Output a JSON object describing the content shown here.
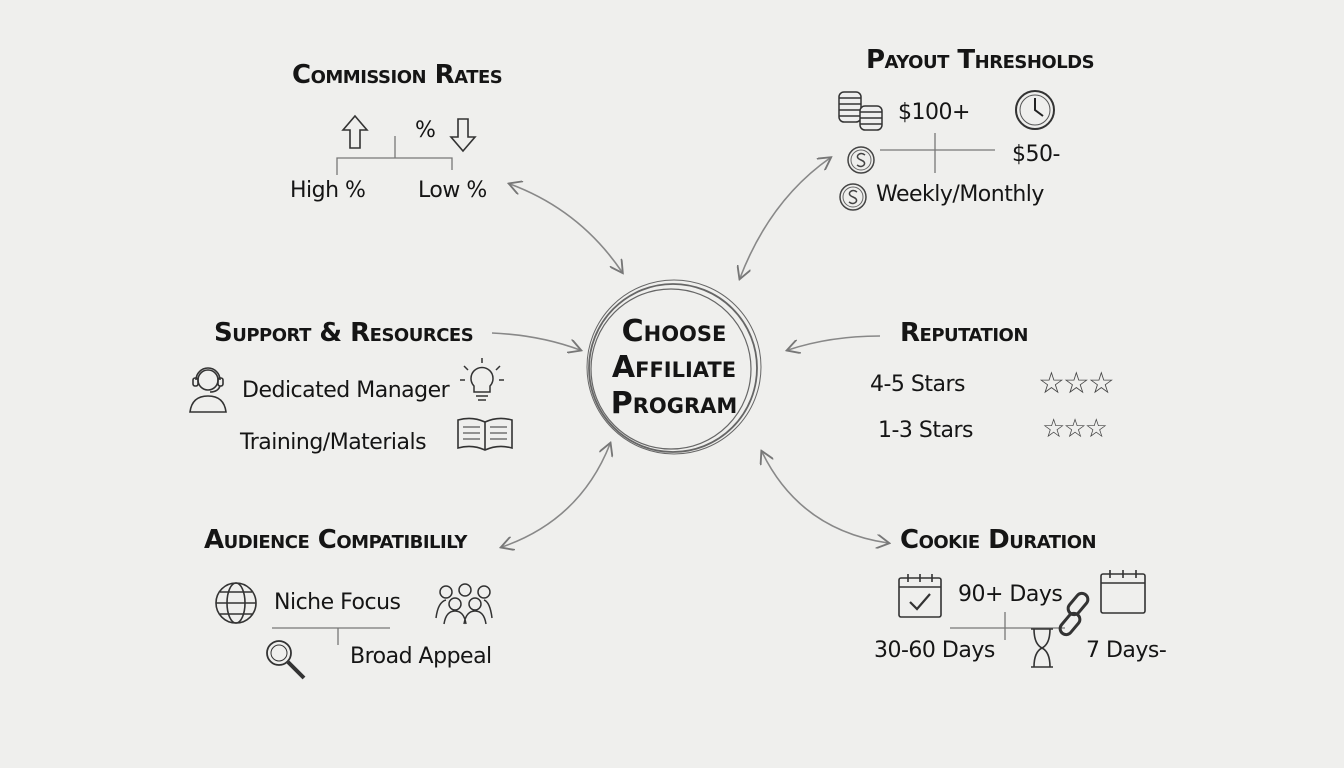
{
  "center": {
    "line1": "Choose",
    "line2": "Affiliate",
    "line3": "Program"
  },
  "commission": {
    "title": "Commission Rates",
    "symbol": "%",
    "high": "High %",
    "low": "Low %",
    "icons": [
      "arrow-up-icon",
      "arrow-down-icon"
    ]
  },
  "payout": {
    "title": "Payout Thresholds",
    "high": "$100+",
    "low": "$50-",
    "frequency": "Weekly/Monthly",
    "icons": [
      "coin-stack-icon",
      "clock-icon",
      "dollar-coin-icon"
    ]
  },
  "support": {
    "title": "Support & Resources",
    "manager": "Dedicated Manager",
    "training": "Training/Materials",
    "icons": [
      "headset-person-icon",
      "lightbulb-icon",
      "open-book-icon"
    ]
  },
  "reputation": {
    "title": "Reputation",
    "high": "4-5 Stars",
    "low": "1-3 Stars",
    "icons": [
      "star-icon"
    ]
  },
  "audience": {
    "title": "Audience Compatibilily",
    "niche": "Niche Focus",
    "broad": "Broad Appeal",
    "icons": [
      "globe-icon",
      "people-group-icon",
      "magnifier-icon"
    ]
  },
  "cookie": {
    "title": "Cookie Duration",
    "long": "90+ Days",
    "medium": "30-60 Days",
    "short": "7 Days-",
    "icons": [
      "calendar-check-icon",
      "calendar-icon",
      "chain-link-icon",
      "hourglass-icon"
    ]
  },
  "colors": {
    "ink": "#151515",
    "line": "#777777",
    "paper": "#efefed"
  }
}
